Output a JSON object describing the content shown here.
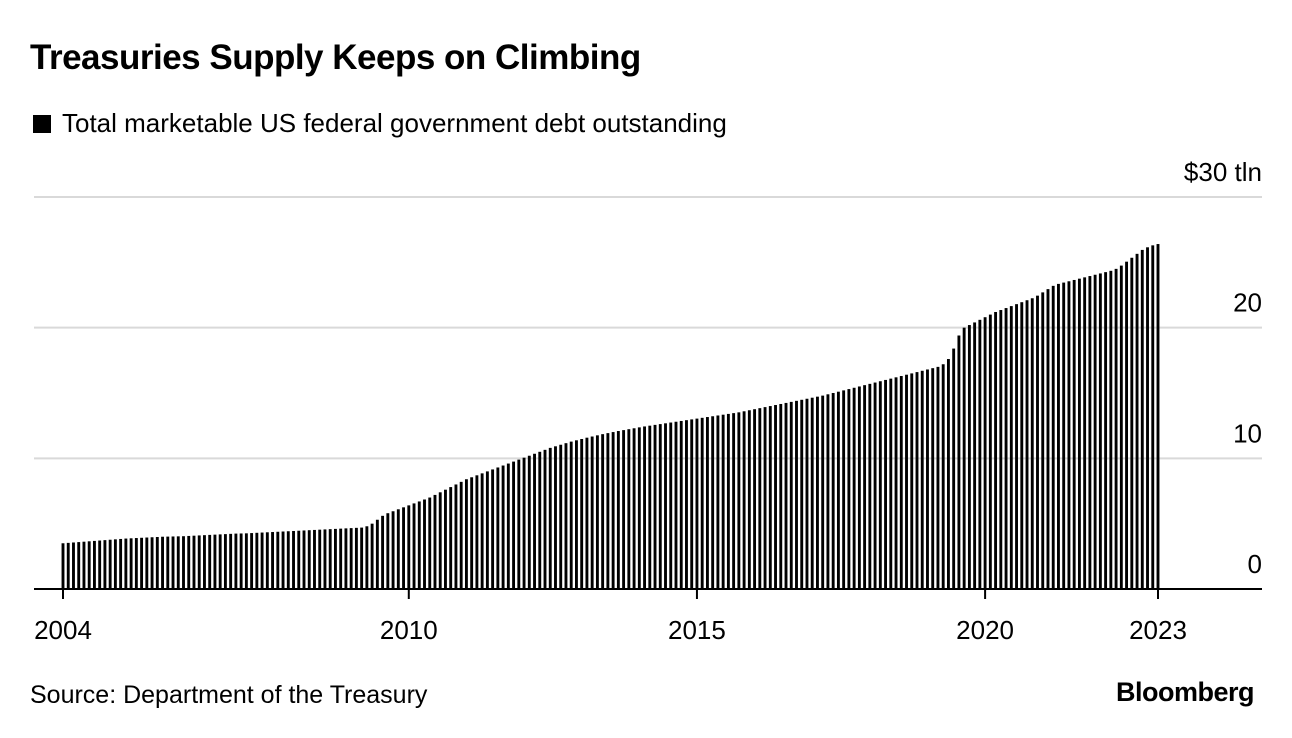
{
  "header": {
    "title": "Treasuries Supply Keeps on Climbing",
    "legend_label": "Total marketable US federal government debt outstanding"
  },
  "footer": {
    "source": "Source: Department of the Treasury",
    "brand": "Bloomberg"
  },
  "colors": {
    "bar": "#000000",
    "grid": "#d9d9d9",
    "axis": "#000000"
  },
  "chart_data": {
    "type": "bar",
    "title": "Treasuries Supply Keeps on Climbing",
    "series": [
      {
        "name": "Total marketable US federal government debt outstanding",
        "start": "2004-01",
        "frequency": "monthly",
        "values": [
          3.5,
          3.53,
          3.56,
          3.59,
          3.62,
          3.65,
          3.68,
          3.71,
          3.74,
          3.77,
          3.8,
          3.83,
          3.86,
          3.88,
          3.9,
          3.92,
          3.94,
          3.96,
          3.98,
          4.0,
          4.01,
          4.02,
          4.03,
          4.04,
          4.06,
          4.08,
          4.1,
          4.12,
          4.14,
          4.16,
          4.18,
          4.2,
          4.22,
          4.24,
          4.25,
          4.26,
          4.28,
          4.3,
          4.32,
          4.34,
          4.36,
          4.38,
          4.4,
          4.42,
          4.44,
          4.46,
          4.48,
          4.5,
          4.52,
          4.54,
          4.56,
          4.58,
          4.6,
          4.62,
          4.64,
          4.66,
          4.68,
          4.7,
          4.8,
          5.0,
          5.3,
          5.6,
          5.8,
          5.95,
          6.1,
          6.25,
          6.4,
          6.55,
          6.7,
          6.85,
          7.0,
          7.2,
          7.4,
          7.6,
          7.8,
          8.0,
          8.2,
          8.4,
          8.55,
          8.7,
          8.85,
          9.0,
          9.15,
          9.3,
          9.45,
          9.6,
          9.75,
          9.9,
          10.05,
          10.2,
          10.35,
          10.5,
          10.65,
          10.8,
          10.92,
          11.04,
          11.16,
          11.28,
          11.38,
          11.48,
          11.58,
          11.67,
          11.76,
          11.85,
          11.93,
          12.01,
          12.09,
          12.16,
          12.23,
          12.3,
          12.37,
          12.44,
          12.5,
          12.56,
          12.62,
          12.68,
          12.74,
          12.8,
          12.86,
          12.92,
          12.98,
          13.04,
          13.1,
          13.16,
          13.22,
          13.28,
          13.34,
          13.4,
          13.46,
          13.52,
          13.6,
          13.68,
          13.76,
          13.84,
          13.92,
          14.0,
          14.08,
          14.16,
          14.24,
          14.32,
          14.4,
          14.48,
          14.56,
          14.64,
          14.72,
          14.8,
          14.9,
          15.0,
          15.1,
          15.2,
          15.3,
          15.4,
          15.5,
          15.6,
          15.7,
          15.8,
          15.9,
          16.0,
          16.1,
          16.2,
          16.3,
          16.4,
          16.5,
          16.6,
          16.7,
          16.8,
          16.9,
          17.0,
          17.2,
          17.6,
          18.4,
          19.4,
          20.0,
          20.2,
          20.4,
          20.6,
          20.8,
          21.0,
          21.2,
          21.35,
          21.5,
          21.65,
          21.8,
          21.95,
          22.1,
          22.25,
          22.45,
          22.7,
          22.95,
          23.2,
          23.35,
          23.45,
          23.55,
          23.65,
          23.75,
          23.85,
          23.95,
          24.05,
          24.15,
          24.25,
          24.35,
          24.5,
          24.75,
          25.05,
          25.35,
          25.65,
          25.95,
          26.15,
          26.3,
          26.4
        ]
      }
    ],
    "y_unit_label": "$30 tln",
    "y_ticks": [
      0,
      10,
      20,
      30
    ],
    "y_tick_labels": [
      "0",
      "10",
      "20",
      "$30 tln"
    ],
    "ylim": [
      0,
      30
    ],
    "x_ticks": [
      2004,
      2010,
      2015,
      2020,
      2023
    ],
    "x_tick_labels": [
      "2004",
      "2010",
      "2015",
      "2020",
      "2023"
    ],
    "xlim": [
      2004,
      2023
    ],
    "grid": true,
    "legend_position": "top-left"
  }
}
